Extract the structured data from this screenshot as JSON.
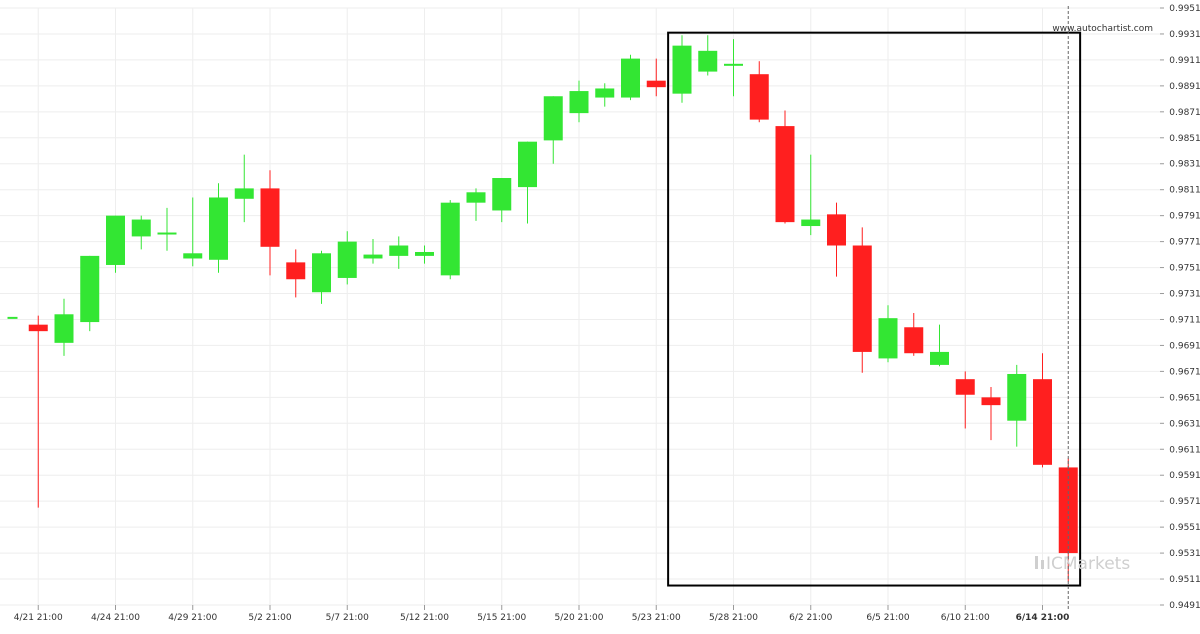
{
  "watermark": "www.autochartist.com",
  "logo": {
    "text": "ICMarkets",
    "color": "#cfcfcf"
  },
  "colors": {
    "up": "#33e633",
    "down": "#ff1f1f",
    "grid": "#eeeeee",
    "box": "#000000",
    "crosshair": "#666666"
  },
  "chart_data": {
    "type": "candlestick",
    "title": "",
    "xlabel": "",
    "ylabel": "",
    "ylim": [
      0.9491,
      0.9951
    ],
    "y_ticks": [
      "0.9951",
      "0.9931",
      "0.9911",
      "0.9891",
      "0.9871",
      "0.9851",
      "0.9831",
      "0.9811",
      "0.9791",
      "0.9771",
      "0.9751",
      "0.9731",
      "0.9711",
      "0.9691",
      "0.9671",
      "0.9651",
      "0.9631",
      "0.9611",
      "0.9591",
      "0.9571",
      "0.9551",
      "0.9531",
      "0.9511",
      "0.9491"
    ],
    "x_ticks": [
      {
        "label": "4/21 21:00",
        "index": 1
      },
      {
        "label": "4/24 21:00",
        "index": 4
      },
      {
        "label": "4/29 21:00",
        "index": 7
      },
      {
        "label": "5/2 21:00",
        "index": 10
      },
      {
        "label": "5/7 21:00",
        "index": 13
      },
      {
        "label": "5/12 21:00",
        "index": 16
      },
      {
        "label": "5/15 21:00",
        "index": 19
      },
      {
        "label": "5/20 21:00",
        "index": 22
      },
      {
        "label": "5/23 21:00",
        "index": 25
      },
      {
        "label": "5/28 21:00",
        "index": 28
      },
      {
        "label": "6/2 21:00",
        "index": 31
      },
      {
        "label": "6/5 21:00",
        "index": 34
      },
      {
        "label": "6/10 21:00",
        "index": 37
      },
      {
        "label": "6/14 21:00",
        "index": 40,
        "bold": true
      }
    ],
    "candles": [
      {
        "o": 0.9713,
        "h": 0.9713,
        "l": 0.9713,
        "c": 0.9713
      },
      {
        "o": 0.9707,
        "h": 0.9714,
        "l": 0.9566,
        "c": 0.9702
      },
      {
        "o": 0.9693,
        "h": 0.9727,
        "l": 0.9683,
        "c": 0.9715
      },
      {
        "o": 0.9709,
        "h": 0.976,
        "l": 0.9702,
        "c": 0.976
      },
      {
        "o": 0.9753,
        "h": 0.9791,
        "l": 0.9747,
        "c": 0.9791
      },
      {
        "o": 0.9775,
        "h": 0.9791,
        "l": 0.9765,
        "c": 0.9788
      },
      {
        "o": 0.9778,
        "h": 0.9797,
        "l": 0.9764,
        "c": 0.9778
      },
      {
        "o": 0.9758,
        "h": 0.9805,
        "l": 0.9752,
        "c": 0.9762
      },
      {
        "o": 0.9757,
        "h": 0.9816,
        "l": 0.9747,
        "c": 0.9805
      },
      {
        "o": 0.9804,
        "h": 0.9838,
        "l": 0.9786,
        "c": 0.9812
      },
      {
        "o": 0.9812,
        "h": 0.9826,
        "l": 0.9745,
        "c": 0.9767
      },
      {
        "o": 0.9755,
        "h": 0.9765,
        "l": 0.9728,
        "c": 0.9742
      },
      {
        "o": 0.9732,
        "h": 0.9764,
        "l": 0.9723,
        "c": 0.9762
      },
      {
        "o": 0.9743,
        "h": 0.9779,
        "l": 0.9738,
        "c": 0.9771
      },
      {
        "o": 0.9758,
        "h": 0.9773,
        "l": 0.9754,
        "c": 0.9761
      },
      {
        "o": 0.976,
        "h": 0.9775,
        "l": 0.975,
        "c": 0.9768
      },
      {
        "o": 0.976,
        "h": 0.9768,
        "l": 0.9754,
        "c": 0.9763
      },
      {
        "o": 0.9745,
        "h": 0.9803,
        "l": 0.9742,
        "c": 0.9801
      },
      {
        "o": 0.9801,
        "h": 0.9812,
        "l": 0.9787,
        "c": 0.9809
      },
      {
        "o": 0.9795,
        "h": 0.982,
        "l": 0.9786,
        "c": 0.982
      },
      {
        "o": 0.9813,
        "h": 0.9848,
        "l": 0.9785,
        "c": 0.9848
      },
      {
        "o": 0.9849,
        "h": 0.9883,
        "l": 0.9831,
        "c": 0.9883
      },
      {
        "o": 0.987,
        "h": 0.9895,
        "l": 0.9863,
        "c": 0.9887
      },
      {
        "o": 0.9882,
        "h": 0.9893,
        "l": 0.9875,
        "c": 0.9889
      },
      {
        "o": 0.9882,
        "h": 0.9915,
        "l": 0.988,
        "c": 0.9912
      },
      {
        "o": 0.9895,
        "h": 0.9912,
        "l": 0.9883,
        "c": 0.989
      },
      {
        "o": 0.9885,
        "h": 0.993,
        "l": 0.9878,
        "c": 0.9922
      },
      {
        "o": 0.9902,
        "h": 0.993,
        "l": 0.9899,
        "c": 0.9918
      },
      {
        "o": 0.9908,
        "h": 0.9927,
        "l": 0.9883,
        "c": 0.9908
      },
      {
        "o": 0.99,
        "h": 0.991,
        "l": 0.9863,
        "c": 0.9865
      },
      {
        "o": 0.986,
        "h": 0.9872,
        "l": 0.9785,
        "c": 0.9786
      },
      {
        "o": 0.9783,
        "h": 0.9838,
        "l": 0.9776,
        "c": 0.9788
      },
      {
        "o": 0.9792,
        "h": 0.9801,
        "l": 0.9744,
        "c": 0.9768
      },
      {
        "o": 0.9768,
        "h": 0.9782,
        "l": 0.967,
        "c": 0.9686
      },
      {
        "o": 0.9681,
        "h": 0.9722,
        "l": 0.9678,
        "c": 0.9712
      },
      {
        "o": 0.9705,
        "h": 0.9716,
        "l": 0.9683,
        "c": 0.9685
      },
      {
        "o": 0.9676,
        "h": 0.9707,
        "l": 0.9675,
        "c": 0.9686
      },
      {
        "o": 0.9665,
        "h": 0.9671,
        "l": 0.9627,
        "c": 0.9653
      },
      {
        "o": 0.9651,
        "h": 0.9659,
        "l": 0.9618,
        "c": 0.9645
      },
      {
        "o": 0.9633,
        "h": 0.9676,
        "l": 0.9613,
        "c": 0.9669
      },
      {
        "o": 0.9665,
        "h": 0.9685,
        "l": 0.9597,
        "c": 0.9599
      },
      {
        "o": 0.9597,
        "h": 0.9604,
        "l": 0.9509,
        "c": 0.9531
      }
    ],
    "highlight_box": {
      "from_index": 26,
      "to_index": 41,
      "y_low": 0.9506,
      "y_high": 0.9932
    },
    "crosshair_index": 41
  }
}
